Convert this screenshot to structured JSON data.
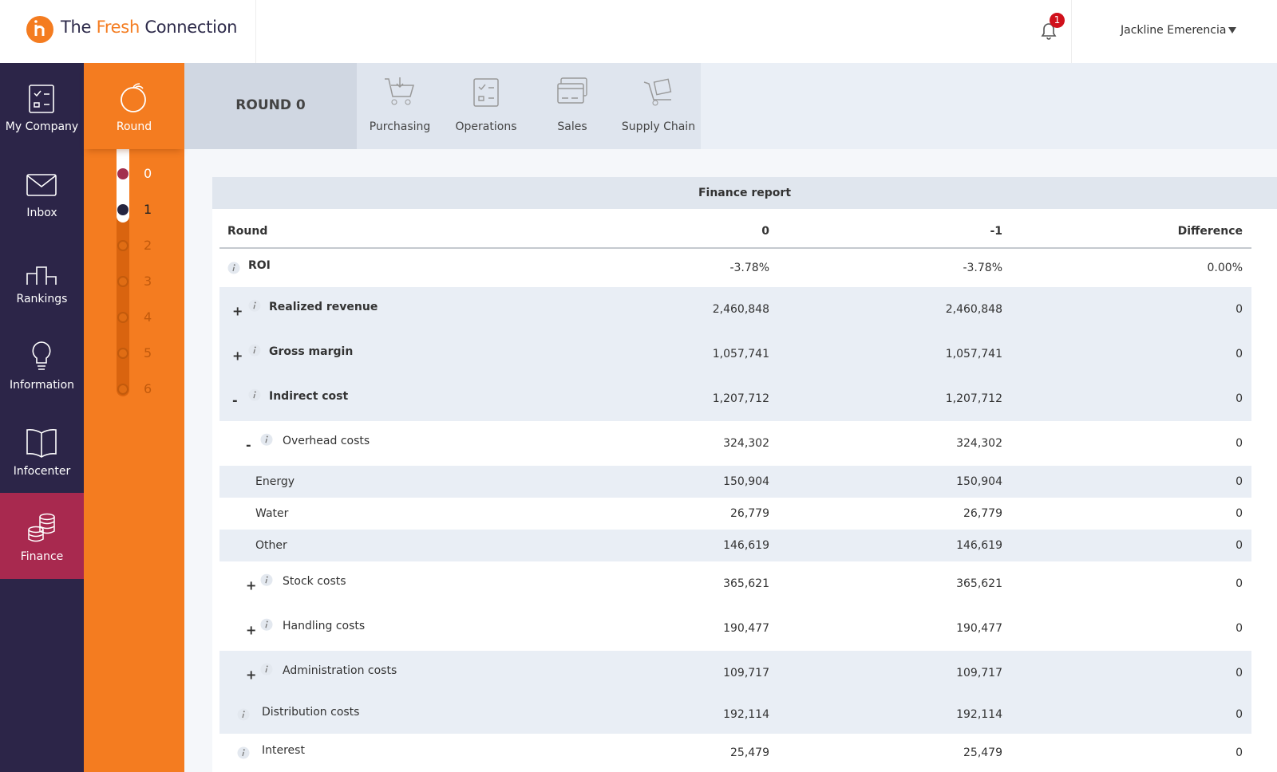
{
  "header": {
    "brand": {
      "pre": "The",
      "accent": "Fresh",
      "post": "Connection"
    },
    "notifications": 1,
    "user": "Jackline Emerencia"
  },
  "sidebar": [
    "My Company",
    "Inbox",
    "Rankings",
    "Information",
    "Infocenter",
    "Finance"
  ],
  "round_panel": {
    "label": "Round",
    "rounds": [
      0,
      1,
      2,
      3,
      4,
      5,
      6
    ]
  },
  "toolbar": {
    "current_round": "ROUND 0",
    "tabs": [
      "Purchasing",
      "Operations",
      "Sales",
      "Supply Chain"
    ]
  },
  "report": {
    "title": "Finance report",
    "columns": [
      "Round",
      "0",
      "-1",
      "Difference"
    ],
    "rows": [
      {
        "label": "ROI",
        "values": [
          "-3.78%",
          "-3.78%",
          "0.00%"
        ]
      },
      {
        "toggle": "+",
        "label": "Realized revenue",
        "values": [
          "2,460,848",
          "2,460,848",
          "0"
        ]
      },
      {
        "toggle": "+",
        "label": "Gross margin",
        "values": [
          "1,057,741",
          "1,057,741",
          "0"
        ]
      },
      {
        "toggle": "-",
        "label": "Indirect cost",
        "values": [
          "1,207,712",
          "1,207,712",
          "0"
        ],
        "children": [
          {
            "toggle": "-",
            "label": "Overhead costs",
            "values": [
              "324,302",
              "324,302",
              "0"
            ],
            "children": [
              {
                "label": "Energy",
                "values": [
                  "150,904",
                  "150,904",
                  "0"
                ]
              },
              {
                "label": "Water",
                "values": [
                  "26,779",
                  "26,779",
                  "0"
                ]
              },
              {
                "label": "Other",
                "values": [
                  "146,619",
                  "146,619",
                  "0"
                ]
              }
            ]
          },
          {
            "toggle": "+",
            "label": "Stock costs",
            "values": [
              "365,621",
              "365,621",
              "0"
            ]
          },
          {
            "toggle": "+",
            "label": "Handling costs",
            "values": [
              "190,477",
              "190,477",
              "0"
            ]
          },
          {
            "toggle": "+",
            "label": "Administration costs",
            "values": [
              "109,717",
              "109,717",
              "0"
            ]
          },
          {
            "label": "Distribution costs",
            "values": [
              "192,114",
              "192,114",
              "0"
            ]
          },
          {
            "label": "Interest",
            "values": [
              "25,479",
              "25,479",
              "0"
            ]
          }
        ]
      }
    ]
  }
}
